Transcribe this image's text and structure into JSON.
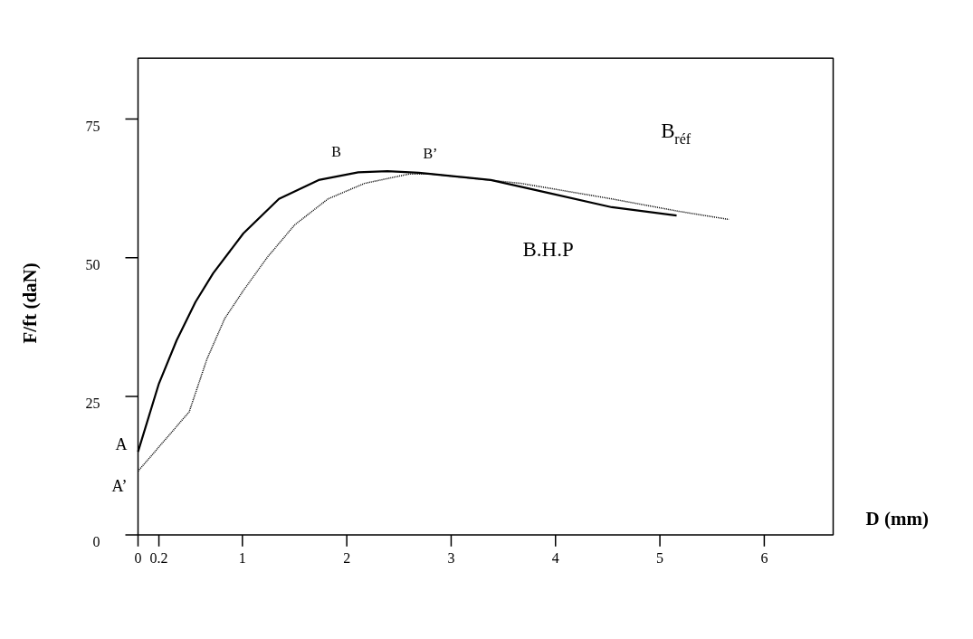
{
  "chart_data": {
    "type": "line",
    "xlabel": "D (mm)",
    "ylabel": "F/ft (daN)",
    "xlim": [
      0,
      6.66
    ],
    "ylim": [
      0,
      86
    ],
    "xticks": [
      0,
      0.2,
      1,
      2,
      3,
      4,
      5,
      6
    ],
    "yticks": [
      0,
      25,
      50,
      75
    ],
    "grid": false,
    "legend": false,
    "marker": "none",
    "series": [
      {
        "name": "B.H.P",
        "color": "#000000",
        "line_style": "solid",
        "x": [
          0,
          0.2,
          0.37,
          0.55,
          0.72,
          1.01,
          1.35,
          1.73,
          2.11,
          2.39,
          2.69,
          2.8,
          3.38,
          3.95,
          4.54,
          5.16
        ],
        "values": [
          15.0,
          27.3,
          35.1,
          42.0,
          47.2,
          54.4,
          60.6,
          64.0,
          65.4,
          65.6,
          65.3,
          65.1,
          64.0,
          61.6,
          59.1,
          57.6
        ]
      },
      {
        "name": "B$_{réf}$",
        "color": "#000000",
        "line_style": "dotted",
        "x": [
          0,
          0.49,
          0.66,
          0.83,
          1.01,
          1.24,
          1.5,
          1.82,
          2.17,
          2.6,
          2.8,
          3.67,
          4.54,
          5.17,
          5.66
        ],
        "values": [
          11.5,
          22.2,
          31.7,
          39.0,
          44.1,
          50.1,
          55.9,
          60.6,
          63.4,
          65.1,
          65.1,
          63.4,
          60.6,
          58.4,
          56.9
        ]
      }
    ],
    "annotations": [
      {
        "text": "A",
        "x": 0,
        "y": 15.0
      },
      {
        "text": "A’",
        "x": 0,
        "y": 11.5
      },
      {
        "text": "B",
        "x": 1.9,
        "y": 65.4
      },
      {
        "text": "B’",
        "x": 2.8,
        "y": 65.1
      }
    ]
  }
}
